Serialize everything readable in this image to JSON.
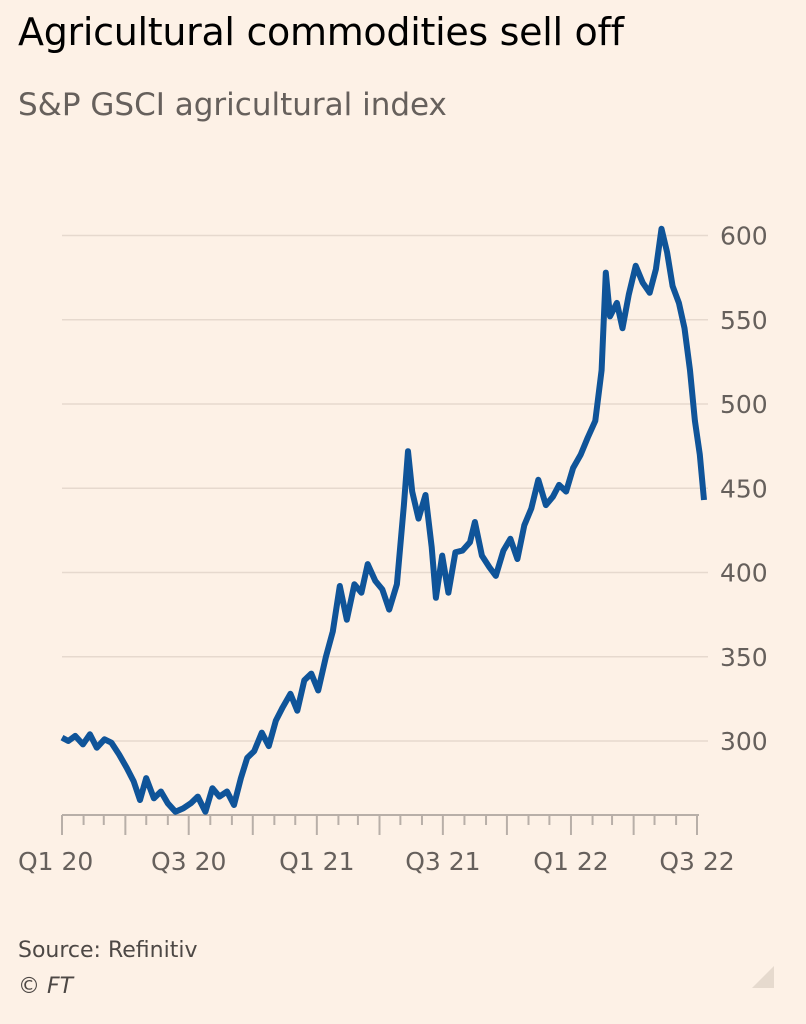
{
  "chart_data": {
    "type": "line",
    "title": "Agricultural commodities sell off",
    "subtitle": "S&P GSCI agricultural index",
    "xlabel": "",
    "ylabel": "",
    "ylim": [
      255,
      610
    ],
    "y_ticks": [
      300,
      350,
      400,
      450,
      500,
      550,
      600
    ],
    "x_range": [
      "2020-01-01",
      "2022-07-15"
    ],
    "x_ticks": [
      {
        "date": "2020-01-01",
        "label": "Q1 20"
      },
      {
        "date": "2020-07-01",
        "label": "Q3 20"
      },
      {
        "date": "2021-01-01",
        "label": "Q1 21"
      },
      {
        "date": "2021-07-01",
        "label": "Q3 21"
      },
      {
        "date": "2022-01-01",
        "label": "Q1 22"
      },
      {
        "date": "2022-07-01",
        "label": "Q3 22"
      }
    ],
    "grid": true,
    "series": [
      {
        "name": "",
        "color": "#0F5499",
        "points": [
          [
            "2020-01-01",
            302
          ],
          [
            "2020-01-10",
            300
          ],
          [
            "2020-01-20",
            303
          ],
          [
            "2020-01-31",
            298
          ],
          [
            "2020-02-10",
            304
          ],
          [
            "2020-02-20",
            296
          ],
          [
            "2020-03-02",
            301
          ],
          [
            "2020-03-12",
            299
          ],
          [
            "2020-03-23",
            292
          ],
          [
            "2020-04-03",
            284
          ],
          [
            "2020-04-13",
            276
          ],
          [
            "2020-04-22",
            265
          ],
          [
            "2020-05-01",
            278
          ],
          [
            "2020-05-12",
            266
          ],
          [
            "2020-05-22",
            270
          ],
          [
            "2020-06-01",
            263
          ],
          [
            "2020-06-12",
            258
          ],
          [
            "2020-06-23",
            260
          ],
          [
            "2020-07-04",
            263
          ],
          [
            "2020-07-14",
            267
          ],
          [
            "2020-07-25",
            258
          ],
          [
            "2020-08-04",
            272
          ],
          [
            "2020-08-14",
            267
          ],
          [
            "2020-08-25",
            270
          ],
          [
            "2020-09-04",
            262
          ],
          [
            "2020-09-14",
            278
          ],
          [
            "2020-09-23",
            290
          ],
          [
            "2020-10-03",
            294
          ],
          [
            "2020-10-14",
            305
          ],
          [
            "2020-10-24",
            297
          ],
          [
            "2020-11-03",
            312
          ],
          [
            "2020-11-13",
            320
          ],
          [
            "2020-11-24",
            328
          ],
          [
            "2020-12-04",
            318
          ],
          [
            "2020-12-14",
            336
          ],
          [
            "2020-12-24",
            340
          ],
          [
            "2021-01-03",
            330
          ],
          [
            "2021-01-14",
            350
          ],
          [
            "2021-01-24",
            365
          ],
          [
            "2021-02-03",
            392
          ],
          [
            "2021-02-13",
            372
          ],
          [
            "2021-02-24",
            393
          ],
          [
            "2021-03-06",
            388
          ],
          [
            "2021-03-15",
            405
          ],
          [
            "2021-03-26",
            395
          ],
          [
            "2021-04-05",
            390
          ],
          [
            "2021-04-15",
            378
          ],
          [
            "2021-04-26",
            393
          ],
          [
            "2021-05-06",
            440
          ],
          [
            "2021-05-12",
            472
          ],
          [
            "2021-05-18",
            448
          ],
          [
            "2021-05-27",
            432
          ],
          [
            "2021-06-06",
            446
          ],
          [
            "2021-06-15",
            415
          ],
          [
            "2021-06-21",
            385
          ],
          [
            "2021-06-30",
            410
          ],
          [
            "2021-07-09",
            388
          ],
          [
            "2021-07-19",
            412
          ],
          [
            "2021-07-29",
            413
          ],
          [
            "2021-08-09",
            418
          ],
          [
            "2021-08-16",
            430
          ],
          [
            "2021-08-26",
            410
          ],
          [
            "2021-09-06",
            403
          ],
          [
            "2021-09-15",
            398
          ],
          [
            "2021-09-26",
            413
          ],
          [
            "2021-10-06",
            420
          ],
          [
            "2021-10-16",
            408
          ],
          [
            "2021-10-26",
            428
          ],
          [
            "2021-11-05",
            438
          ],
          [
            "2021-11-15",
            455
          ],
          [
            "2021-11-26",
            440
          ],
          [
            "2021-12-06",
            445
          ],
          [
            "2021-12-15",
            452
          ],
          [
            "2021-12-25",
            448
          ],
          [
            "2022-01-04",
            462
          ],
          [
            "2022-01-15",
            470
          ],
          [
            "2022-01-25",
            480
          ],
          [
            "2022-02-05",
            490
          ],
          [
            "2022-02-14",
            520
          ],
          [
            "2022-02-20",
            578
          ],
          [
            "2022-02-26",
            552
          ],
          [
            "2022-03-08",
            560
          ],
          [
            "2022-03-16",
            545
          ],
          [
            "2022-03-25",
            565
          ],
          [
            "2022-04-04",
            582
          ],
          [
            "2022-04-14",
            572
          ],
          [
            "2022-04-24",
            566
          ],
          [
            "2022-05-03",
            580
          ],
          [
            "2022-05-11",
            604
          ],
          [
            "2022-05-19",
            590
          ],
          [
            "2022-05-27",
            570
          ],
          [
            "2022-06-05",
            560
          ],
          [
            "2022-06-13",
            545
          ],
          [
            "2022-06-21",
            520
          ],
          [
            "2022-06-28",
            490
          ],
          [
            "2022-07-05",
            470
          ],
          [
            "2022-07-11",
            443
          ]
        ]
      }
    ],
    "source": "Source: Refinitiv",
    "credit": "© FT"
  }
}
